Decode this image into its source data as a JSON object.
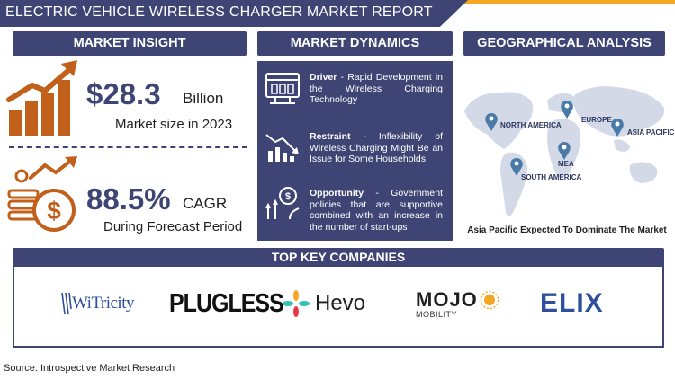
{
  "header": {
    "title": "ELECTRIC VEHICLE WIRELESS CHARGER MARKET REPORT"
  },
  "sections": {
    "insight": "MARKET INSIGHT",
    "dynamics": "MARKET DYNAMICS",
    "geo": "GEOGRAPHICAL ANALYSIS",
    "companies": "TOP KEY COMPANIES"
  },
  "insight": {
    "market_size": "$28.3",
    "market_unit": "Billion",
    "market_caption": "Market size in 2023",
    "cagr": "88.5%",
    "cagr_unit": "CAGR",
    "cagr_caption": "During Forecast Period"
  },
  "dynamics": [
    {
      "label": "Driver",
      "text": " - Rapid Development in the Wireless Charging Technology",
      "icon": "server-icon"
    },
    {
      "label": "Restraint",
      "text": " - Inflexibility of Wireless Charging Might Be an Issue for Some Households",
      "icon": "declining-chart-icon"
    },
    {
      "label": "Opportunity",
      "text": " - Government policies that are supportive combined with an increase in the number of start-ups",
      "icon": "growth-idea-icon"
    }
  ],
  "geo": {
    "regions": [
      "NORTH AMERICA",
      "EUROPE",
      "ASIA PACIFIC",
      "MEA",
      "SOUTH AMERICA"
    ],
    "caption": "Asia Pacific Expected To Dominate The Market"
  },
  "companies": [
    "WiTricity",
    "PLUGLESS",
    "Hevo",
    "MOJO",
    "MOBILITY",
    "ELIX"
  ],
  "source": "Source: Introspective Market Research",
  "colors": {
    "navy": "#3e4575",
    "orange": "#c0601a",
    "accent": "#f5a622",
    "map": "#d3d9e6"
  }
}
